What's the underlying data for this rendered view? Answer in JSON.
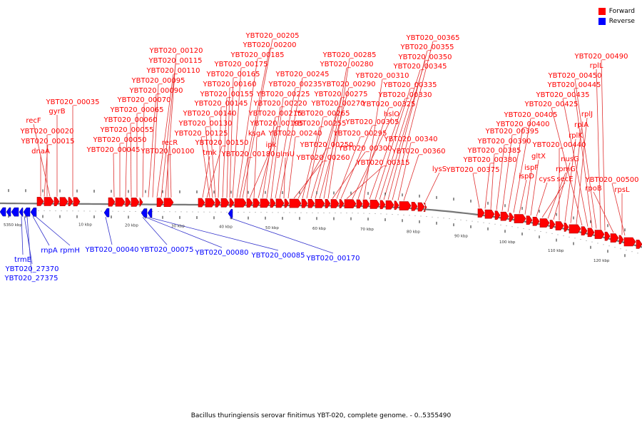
{
  "legend": [
    {
      "label": "Forward",
      "color": "#ff0000"
    },
    {
      "label": "Reverse",
      "color": "#0000ff"
    }
  ],
  "caption": "Bacillus thuringiensis serovar finitimus YBT-020, complete genome. - 0..5355490",
  "colors": {
    "forward": "#ff0000",
    "forward_dark": "#b30000",
    "reverse": "#0000ff",
    "axis": "#777777",
    "line_forward": "#e03030",
    "line_reverse": "#3333cc"
  },
  "ticks": [
    "5350 kbp",
    "10 kbp",
    "20 kbp",
    "30 kbp",
    "40 kbp",
    "50 kbp",
    "60 kbp",
    "70 kbp",
    "80 kbp",
    "90 kbp",
    "100 kbp",
    "110 kbp",
    "120 kbp"
  ],
  "forward_labels": [
    "dnaA",
    "YBT020_00015",
    "YBT020_00020",
    "recF",
    "gyrB",
    "YBT020_00035",
    "YBT020_00045",
    "YBT020_00050",
    "YBT020_00055",
    "YBT020_00060",
    "YBT020_00065",
    "YBT020_00070",
    "YBT020_00090",
    "YBT020_00095",
    "YBT020_00110",
    "YBT020_00115",
    "YBT020_00120",
    "YBT020_00100",
    "recR",
    "tmk",
    "YBT020_00150",
    "YBT020_00125",
    "YBT020_00130",
    "YBT020_00140",
    "YBT020_00145",
    "YBT020_00155",
    "YBT020_00160",
    "YBT020_00165",
    "YBT020_00175",
    "YBT020_00185",
    "YBT020_00200",
    "YBT020_00205",
    "YBT020_00180",
    "ipk",
    "ksgA",
    "YBT020_00195",
    "YBT020_00215",
    "YBT020_00220",
    "YBT020_00225",
    "YBT020_00235",
    "YBT020_00245",
    "glmU",
    "YBT020_00240",
    "YBT020_00260",
    "YBT020_00250",
    "YBT020_00255",
    "YBT020_00265",
    "YBT020_00270",
    "YBT020_00275",
    "YBT020_00290",
    "YBT020_00280",
    "YBT020_00285",
    "YBT020_00300",
    "YBT020_00295",
    "YBT020_00305",
    "YBT020_00315",
    "hslO",
    "YBT020_00325",
    "YBT020_00310",
    "YBT020_00330",
    "YBT020_00335",
    "YBT020_00345",
    "YBT020_00350",
    "YBT020_00355",
    "YBT020_00365",
    "YBT020_00340",
    "YBT020_00360",
    "lysS",
    "YBT020_00375",
    "YBT020_00380",
    "YBT020_00385",
    "YBT020_00390",
    "YBT020_00395",
    "YBT020_00400",
    "YBT020_00405",
    "ispD",
    "ispF",
    "gltX",
    "cysS",
    "secE",
    "rpmG",
    "nusG",
    "YBT020_00440",
    "rplK",
    "rplA",
    "rplJ",
    "YBT020_00425",
    "YBT020_00435",
    "YBT020_00445",
    "YBT020_00450",
    "rplL",
    "YBT020_00490",
    "rpoB",
    "YBT020_00500",
    "rpsL"
  ],
  "reverse_labels": [
    "trmE",
    "YBT020_27370",
    "YBT020_27375",
    "rnpA",
    "rpmH",
    "YBT020_00040",
    "YBT020_00075",
    "YBT020_00080",
    "YBT020_00085",
    "YBT020_00170"
  ]
}
